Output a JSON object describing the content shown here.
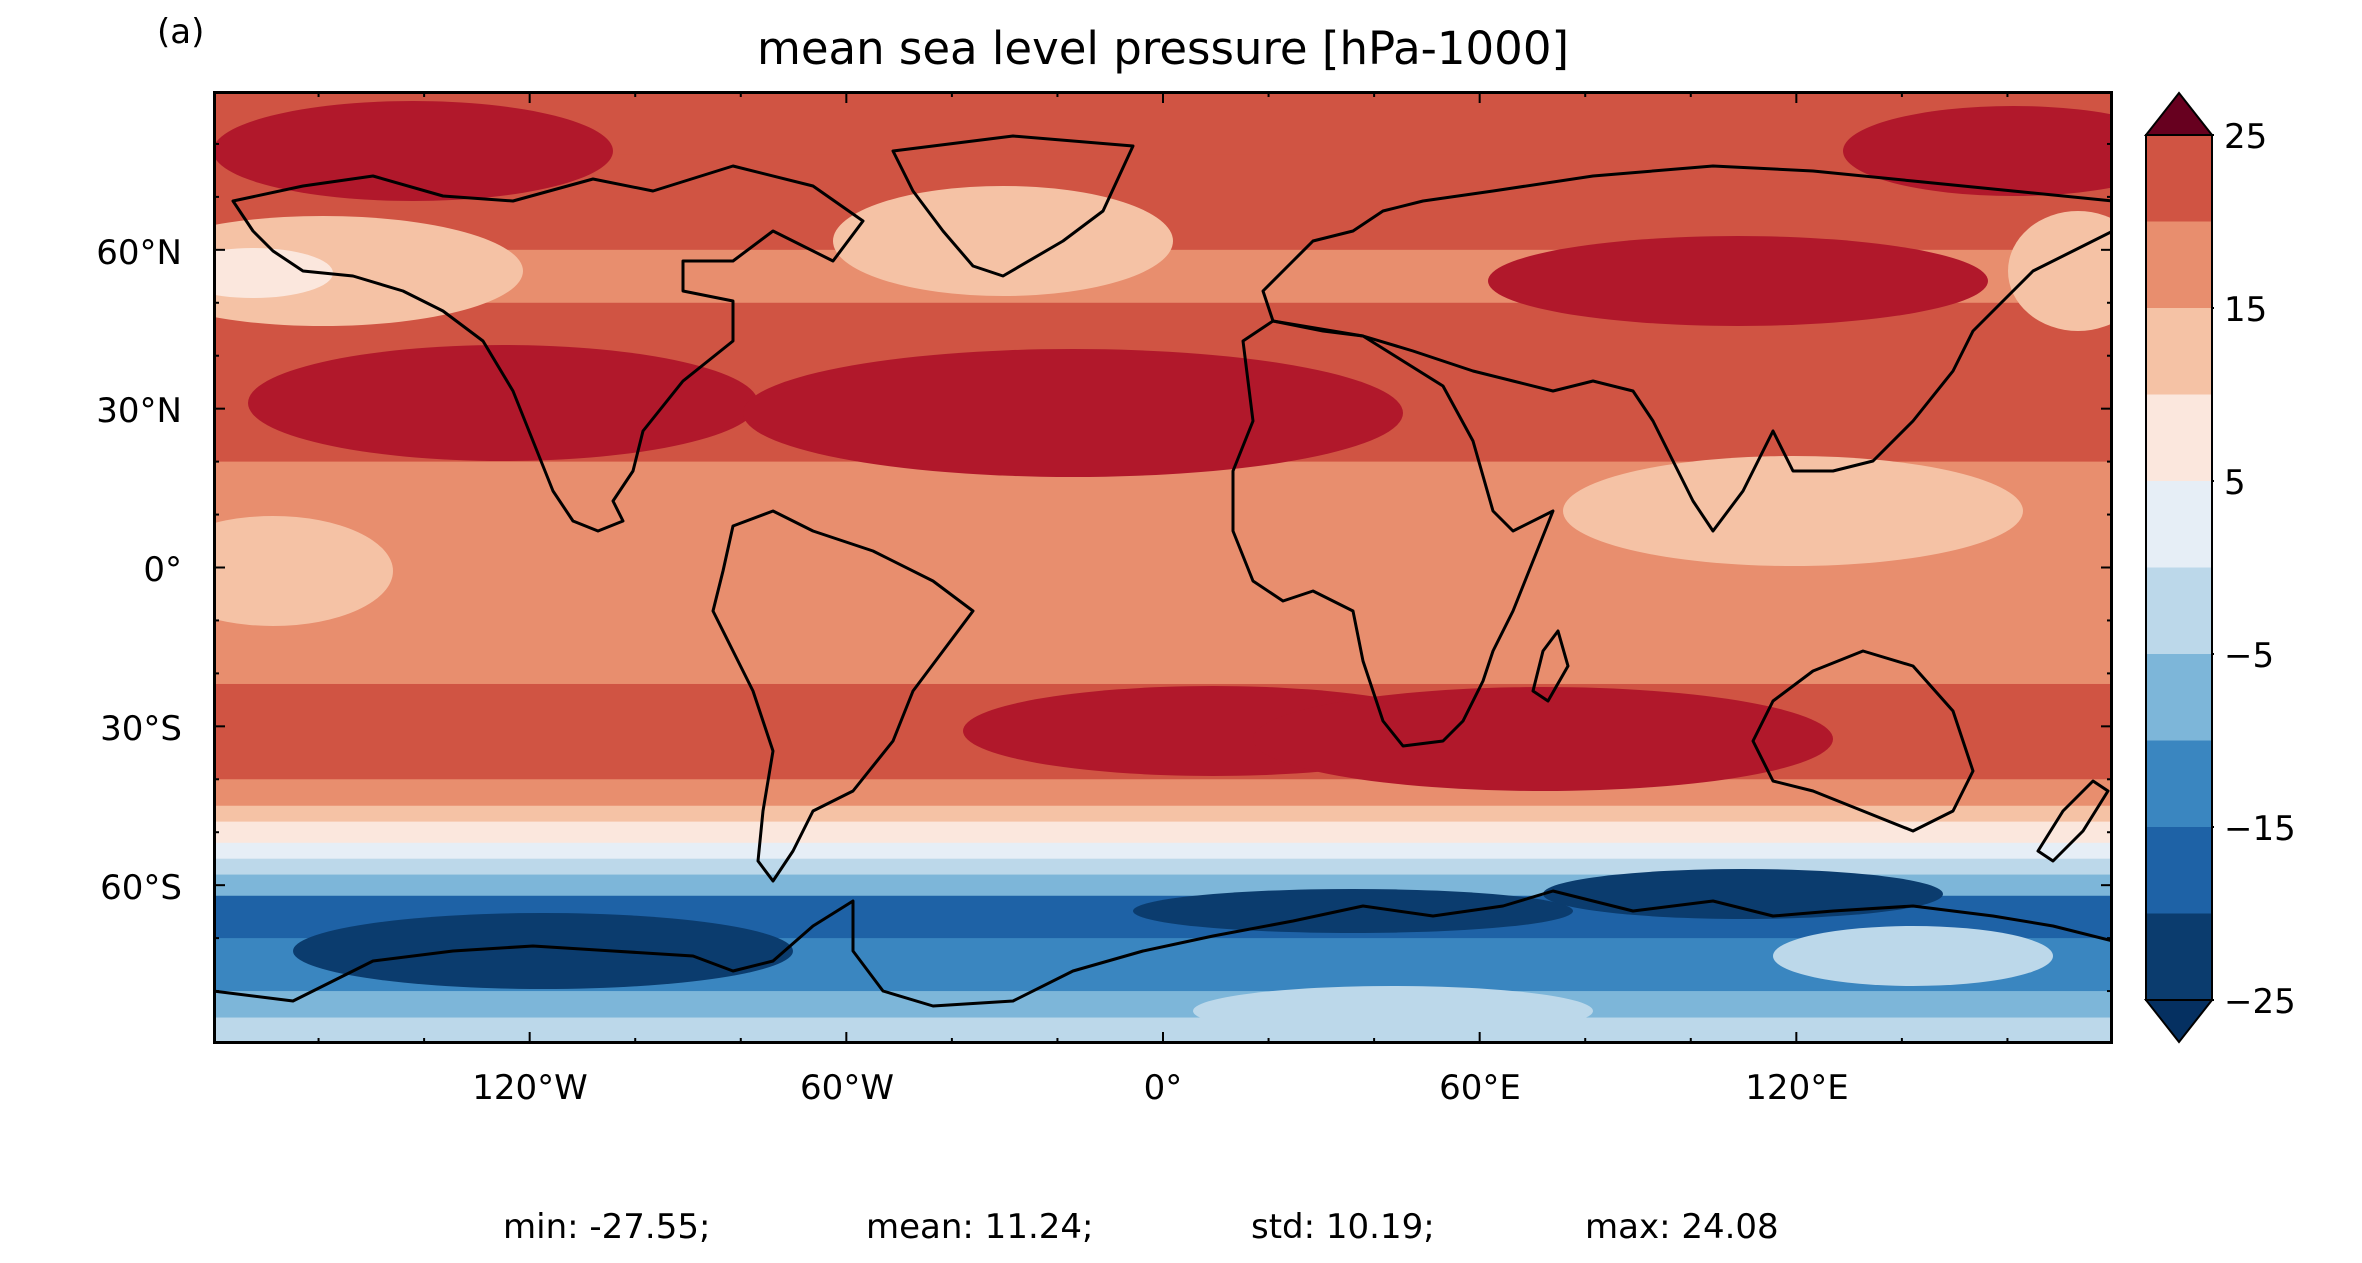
{
  "panel_label": "(a)",
  "title": "mean sea level pressure [hPa-1000]",
  "lat_labels": [
    "60°N",
    "30°N",
    "0°",
    "30°S",
    "60°S"
  ],
  "lon_labels": [
    "120°W",
    "60°W",
    "0°",
    "60°E",
    "120°E"
  ],
  "colorbar": {
    "tick_labels": [
      "25",
      "15",
      "5",
      "−5",
      "−15",
      "−25"
    ],
    "levels": [
      -25,
      -20,
      -15,
      -10,
      -5,
      0,
      5,
      10,
      15,
      20,
      25
    ],
    "colors": [
      "#0b3c6e",
      "#1e62a6",
      "#3a86c0",
      "#7db6d9",
      "#bcd8ea",
      "#e6eef6",
      "#fbe7dd",
      "#f5c2a5",
      "#e88e6e",
      "#d05443",
      "#b1182b"
    ],
    "extend_under_color": "#053061",
    "extend_over_color": "#67001f"
  },
  "stats": {
    "min": "min: -27.55;",
    "mean": "mean: 11.24;",
    "std": "std: 10.19;",
    "max": "max: 24.08"
  },
  "chart_data": {
    "type": "heatmap",
    "title": "mean sea level pressure [hPa-1000]",
    "projection": "PlateCarree",
    "x_range": [
      -180,
      180
    ],
    "y_range": [
      -90,
      90
    ],
    "lon_ticks": [
      -120,
      -60,
      0,
      60,
      120
    ],
    "lat_ticks": [
      60,
      30,
      0,
      -30,
      -60
    ],
    "colorbar_range": [
      -25,
      25
    ],
    "colorbar_ticks": [
      25,
      15,
      5,
      -5,
      -15,
      -25
    ],
    "stats": {
      "min": -27.55,
      "mean": 11.24,
      "std": 10.19,
      "max": 24.08
    }
  }
}
